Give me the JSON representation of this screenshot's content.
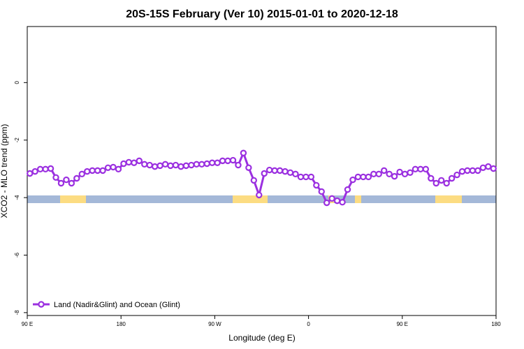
{
  "chart_data": {
    "type": "line",
    "title": "20S-15S February (Ver 10)   2015-01-01 to 2020-12-18",
    "xlabel": "Longitude (deg E)",
    "ylabel": "XCO2 - MLO trend (ppm)",
    "x": [
      92.5,
      97.5,
      102.5,
      107.5,
      112.5,
      117.5,
      122.5,
      127.5,
      132.5,
      137.5,
      142.5,
      147.5,
      152.5,
      157.5,
      162.5,
      167.5,
      172.5,
      177.5,
      182.5,
      187.5,
      192.5,
      197.5,
      202.5,
      207.5,
      212.5,
      217.5,
      222.5,
      227.5,
      232.5,
      237.5,
      242.5,
      247.5,
      252.5,
      257.5,
      262.5,
      267.5,
      272.5,
      277.5,
      282.5,
      287.5,
      292.5,
      297.5,
      302.5,
      307.5,
      312.5,
      317.5,
      322.5,
      327.5,
      332.5,
      337.5,
      342.5,
      347.5,
      352.5,
      357.5,
      362.5,
      367.5,
      372.5,
      377.5,
      382.5,
      387.5,
      392.5,
      397.5,
      402.5,
      407.5,
      412.5,
      417.5,
      422.5,
      427.5,
      432.5,
      437.5,
      442.5,
      447.5,
      452.5,
      457.5,
      462.5,
      467.5,
      472.5,
      477.5,
      482.5,
      487.5,
      492.5,
      497.5,
      502.5,
      507.5,
      512.5,
      517.5,
      522.5,
      527.5,
      532.5,
      537.5
    ],
    "series": [
      {
        "name": "Land (Nadir&Glint) and Ocean (Glint)",
        "color": "#9b30e0",
        "values": [
          -3.16,
          -3.09,
          -3.01,
          -3.01,
          -2.99,
          -3.3,
          -3.5,
          -3.38,
          -3.5,
          -3.33,
          -3.18,
          -3.09,
          -3.06,
          -3.06,
          -3.06,
          -2.96,
          -2.94,
          -3.01,
          -2.82,
          -2.77,
          -2.79,
          -2.72,
          -2.84,
          -2.87,
          -2.92,
          -2.89,
          -2.84,
          -2.89,
          -2.87,
          -2.92,
          -2.89,
          -2.87,
          -2.84,
          -2.84,
          -2.82,
          -2.79,
          -2.79,
          -2.72,
          -2.72,
          -2.7,
          -2.87,
          -2.45,
          -2.96,
          -3.4,
          -3.91,
          -3.16,
          -3.04,
          -3.06,
          -3.06,
          -3.09,
          -3.13,
          -3.18,
          -3.28,
          -3.28,
          -3.28,
          -3.57,
          -3.79,
          -4.18,
          -4.03,
          -4.11,
          -4.16,
          -3.72,
          -3.38,
          -3.28,
          -3.28,
          -3.28,
          -3.18,
          -3.18,
          -3.06,
          -3.18,
          -3.26,
          -3.11,
          -3.18,
          -3.13,
          -3.01,
          -3.01,
          -3.01,
          -3.33,
          -3.5,
          -3.4,
          -3.5,
          -3.33,
          -3.21,
          -3.09,
          -3.06,
          -3.06,
          -3.06,
          -2.96,
          -2.92,
          -2.99
        ]
      }
    ],
    "xlim": [
      90,
      540
    ],
    "xticks": [
      {
        "value": 90,
        "label": "90 E"
      },
      {
        "value": 180,
        "label": "180"
      },
      {
        "value": 270,
        "label": "90 W"
      },
      {
        "value": 360,
        "label": "0"
      },
      {
        "value": 450,
        "label": "90 E"
      },
      {
        "value": 540,
        "label": "180"
      }
    ],
    "ylim": [
      -8.1,
      1.95
    ],
    "yticks": [
      0,
      -2,
      -4,
      -6,
      -8
    ],
    "legend": "lower left"
  }
}
